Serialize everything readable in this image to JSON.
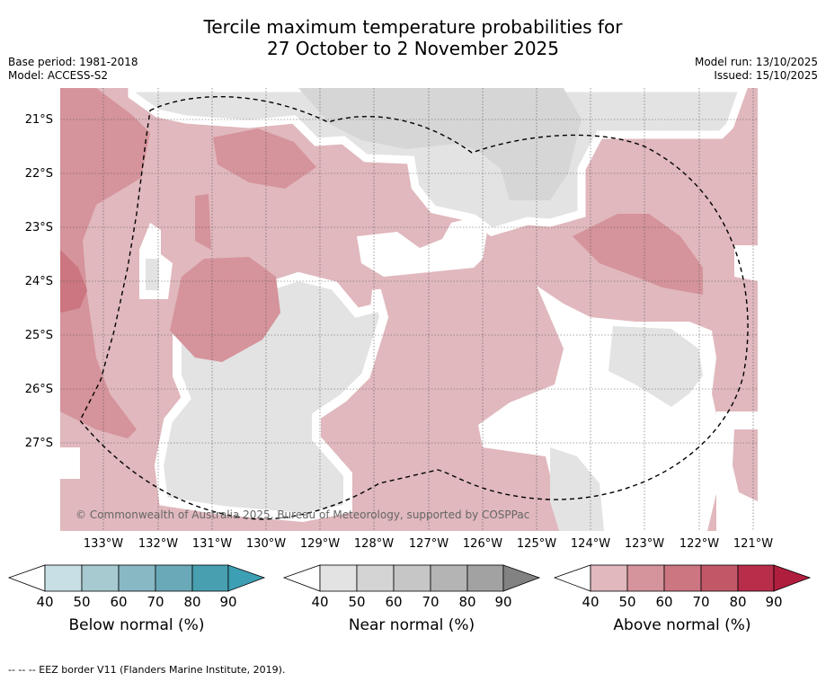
{
  "title": {
    "line1": "Tercile maximum temperature probabilities for",
    "line2": "27 October to 2 November 2025"
  },
  "meta_left": {
    "base_period": "Base period: 1981-2018",
    "model": "Model: ACCESS-S2"
  },
  "meta_right": {
    "model_run": "Model run: 13/10/2025",
    "issued": "Issued: 15/10/2025"
  },
  "latitude_labels": [
    "21°S",
    "22°S",
    "23°S",
    "24°S",
    "25°S",
    "26°S",
    "27°S"
  ],
  "longitude_labels": [
    "133°W",
    "132°W",
    "131°W",
    "130°W",
    "129°W",
    "128°W",
    "127°W",
    "126°W",
    "125°W",
    "124°W",
    "123°W",
    "122°W",
    "121°W"
  ],
  "copyright": "© Commonwealth of Australia 2025, Bureau of Meteorology, supported by COSPPac",
  "colorbars": [
    {
      "label": "Below normal (%)",
      "ticks": [
        "40",
        "50",
        "60",
        "70",
        "80",
        "90"
      ],
      "colors": [
        "#ffffff",
        "#c8e0e5",
        "#a7cad0",
        "#88b8c4",
        "#6aa9b8",
        "#479fb0",
        "#3d9fb3"
      ]
    },
    {
      "label": "Near normal (%)",
      "ticks": [
        "40",
        "50",
        "60",
        "70",
        "80",
        "90"
      ],
      "colors": [
        "#ffffff",
        "#e3e3e3",
        "#d4d4d4",
        "#c6c6c6",
        "#b4b4b4",
        "#a2a2a2",
        "#828282"
      ]
    },
    {
      "label": "Above normal (%)",
      "ticks": [
        "40",
        "50",
        "60",
        "70",
        "80",
        "90"
      ],
      "colors": [
        "#ffffff",
        "#e0b8bd",
        "#d5939b",
        "#cb7680",
        "#c25767",
        "#b82d4a",
        "#b01e3e"
      ]
    }
  ],
  "footnote": "--  --  -- EEZ border V11 (Flanders Marine Institute, 2019)."
}
